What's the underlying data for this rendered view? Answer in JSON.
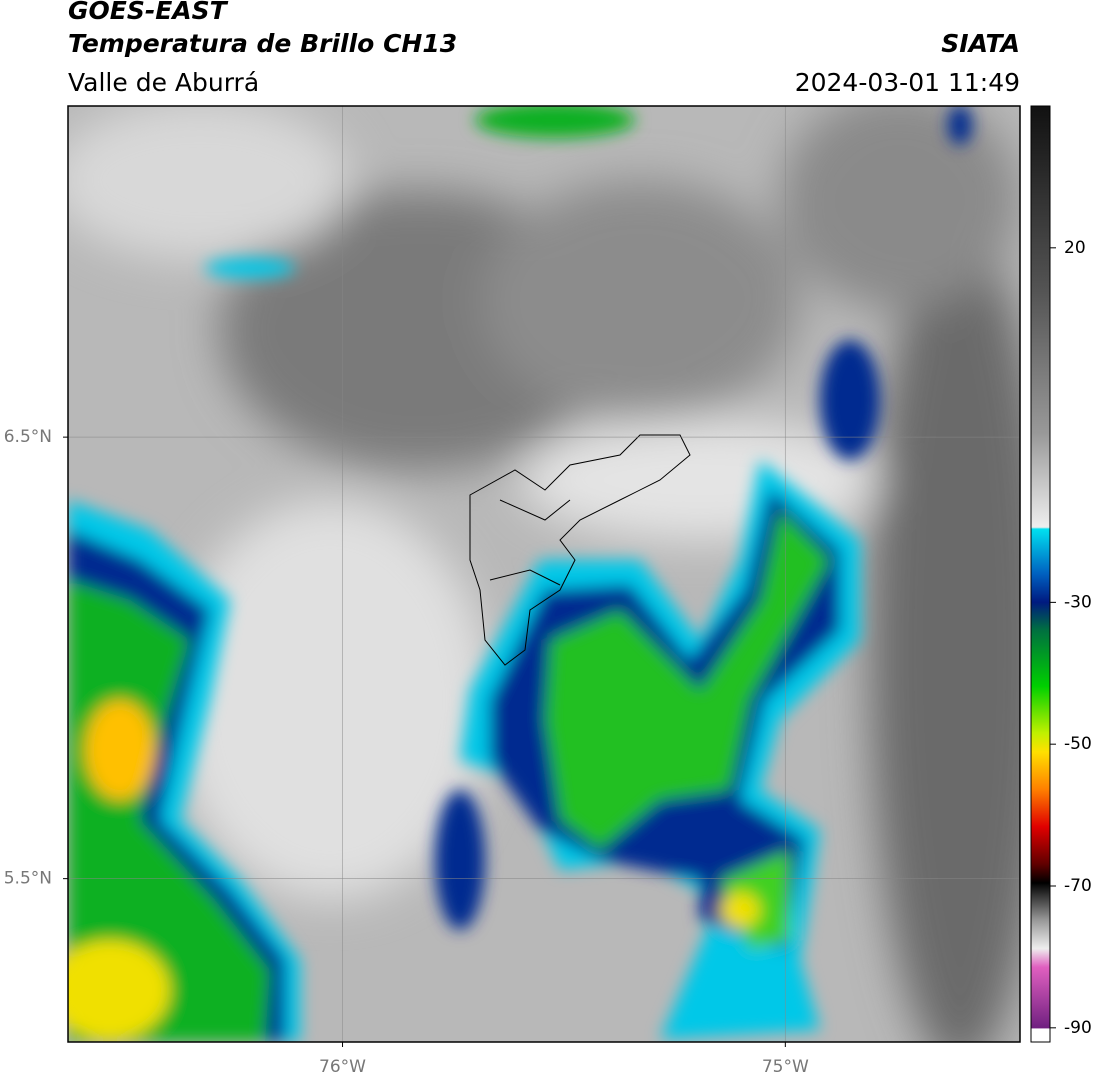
{
  "header": {
    "title": "GOES-EAST",
    "subtitle": "Temperatura de Brillo CH13",
    "region": "Valle de Aburrá",
    "source": "SIATA",
    "datetime": "2024-03-01 11:49"
  },
  "map": {
    "xlim": [
      -76.62,
      -74.47
    ],
    "ylim": [
      5.13,
      7.25
    ],
    "xticks": [
      {
        "value": -76,
        "label": "76°W"
      },
      {
        "value": -75,
        "label": "75°W"
      }
    ],
    "yticks": [
      {
        "value": 6.5,
        "label": "6.5°N"
      },
      {
        "value": 5.5,
        "label": "5.5°N"
      }
    ],
    "grid": true
  },
  "colorbar": {
    "lim": [
      -92,
      40
    ],
    "ticks": [
      20,
      -30,
      -50,
      -70,
      -90
    ]
  }
}
